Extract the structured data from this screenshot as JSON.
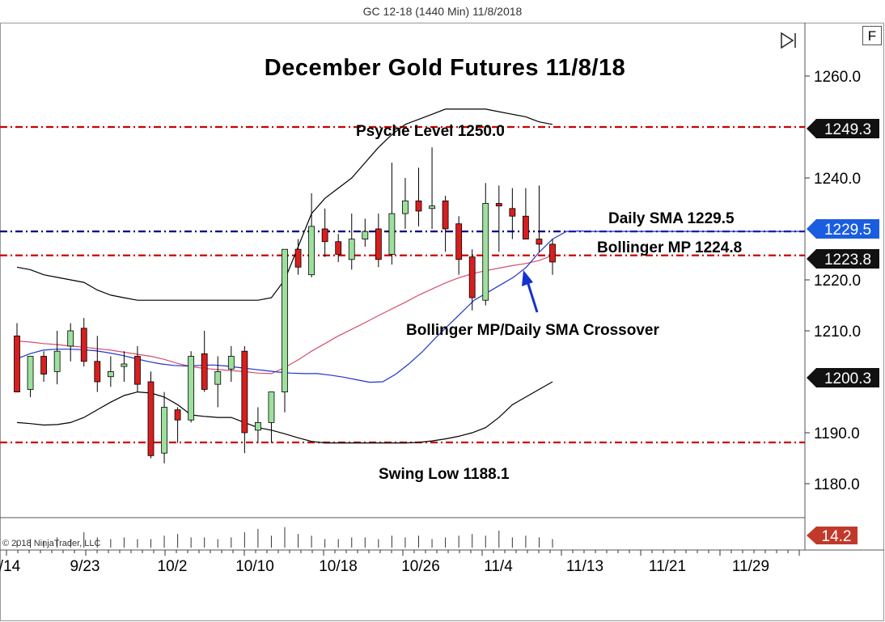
{
  "header": {
    "title": "GC 12-18 (1440 Min)  11/8/2018"
  },
  "toolbar": {
    "f_button_label": "F",
    "scroll_end_icon": "skip-to-end-icon"
  },
  "copyright": "© 2018 NinjaTrader, LLC",
  "colors": {
    "bull": "#9de09d",
    "bear": "#d81e1e",
    "level_red": "#cc0000",
    "level_blue": "#000080",
    "sma": "#2233cc",
    "bollinger_mp": "#d64e6e",
    "bands": "#000000",
    "badge_dark": "#111111",
    "badge_blue": "#1a5de0",
    "badge_red": "#c0392b",
    "arrow": "#1433cc"
  },
  "chart_data": {
    "type": "candlestick",
    "title": "December Gold Futures 11/8/18",
    "y_axis": {
      "ylim": [
        1175.0,
        1265.0
      ],
      "ticks": [
        1260.0,
        1240.0,
        1220.0,
        1210.0,
        1190.0,
        1180.0
      ]
    },
    "x_axis": {
      "tick_labels": [
        "/14",
        "9/23",
        "10/2",
        "10/10",
        "10/18",
        "10/26",
        "11/4",
        "11/13",
        "11/21",
        "11/29"
      ]
    },
    "candles": [
      {
        "o": 1209.0,
        "h": 1211.5,
        "l": 1198.0,
        "c": 1198.0
      },
      {
        "o": 1198.5,
        "h": 1205.0,
        "l": 1197.0,
        "c": 1205.0
      },
      {
        "o": 1205.0,
        "h": 1206.0,
        "l": 1200.0,
        "c": 1201.5
      },
      {
        "o": 1202.0,
        "h": 1210.0,
        "l": 1199.5,
        "c": 1206.0
      },
      {
        "o": 1207.0,
        "h": 1211.5,
        "l": 1204.0,
        "c": 1210.0
      },
      {
        "o": 1210.5,
        "h": 1212.5,
        "l": 1203.0,
        "c": 1204.0
      },
      {
        "o": 1204.0,
        "h": 1209.0,
        "l": 1198.0,
        "c": 1200.0
      },
      {
        "o": 1201.0,
        "h": 1205.0,
        "l": 1199.0,
        "c": 1202.0
      },
      {
        "o": 1203.0,
        "h": 1206.0,
        "l": 1200.0,
        "c": 1203.5
      },
      {
        "o": 1205.0,
        "h": 1207.0,
        "l": 1198.0,
        "c": 1199.5
      },
      {
        "o": 1200.0,
        "h": 1202.0,
        "l": 1185.0,
        "c": 1185.5
      },
      {
        "o": 1186.0,
        "h": 1198.0,
        "l": 1184.0,
        "c": 1195.0
      },
      {
        "o": 1194.5,
        "h": 1195.0,
        "l": 1188.0,
        "c": 1192.5
      },
      {
        "o": 1192.5,
        "h": 1206.0,
        "l": 1192.0,
        "c": 1205.0
      },
      {
        "o": 1205.5,
        "h": 1210.0,
        "l": 1198.0,
        "c": 1198.5
      },
      {
        "o": 1199.5,
        "h": 1205.0,
        "l": 1195.0,
        "c": 1202.0
      },
      {
        "o": 1202.5,
        "h": 1207.0,
        "l": 1200.0,
        "c": 1205.0
      },
      {
        "o": 1206.0,
        "h": 1207.0,
        "l": 1186.0,
        "c": 1190.0
      },
      {
        "o": 1190.5,
        "h": 1195.0,
        "l": 1188.0,
        "c": 1192.0
      },
      {
        "o": 1192.0,
        "h": 1198.0,
        "l": 1188.0,
        "c": 1198.0
      },
      {
        "o": 1198.0,
        "h": 1226.0,
        "l": 1194.0,
        "c": 1226.0
      },
      {
        "o": 1226.0,
        "h": 1228.0,
        "l": 1221.0,
        "c": 1222.5
      },
      {
        "o": 1221.0,
        "h": 1237.0,
        "l": 1220.5,
        "c": 1230.5
      },
      {
        "o": 1230.0,
        "h": 1234.0,
        "l": 1224.5,
        "c": 1227.5
      },
      {
        "o": 1227.5,
        "h": 1229.0,
        "l": 1223.5,
        "c": 1225.0
      },
      {
        "o": 1224.0,
        "h": 1233.0,
        "l": 1222.0,
        "c": 1228.0
      },
      {
        "o": 1228.0,
        "h": 1232.0,
        "l": 1226.5,
        "c": 1229.5
      },
      {
        "o": 1230.0,
        "h": 1233.0,
        "l": 1222.5,
        "c": 1224.0
      },
      {
        "o": 1225.0,
        "h": 1243.0,
        "l": 1223.0,
        "c": 1233.0
      },
      {
        "o": 1233.0,
        "h": 1240.0,
        "l": 1230.0,
        "c": 1235.5
      },
      {
        "o": 1235.5,
        "h": 1242.0,
        "l": 1230.5,
        "c": 1233.5
      },
      {
        "o": 1234.0,
        "h": 1246.0,
        "l": 1230.0,
        "c": 1234.5
      },
      {
        "o": 1235.5,
        "h": 1236.5,
        "l": 1225.5,
        "c": 1230.0
      },
      {
        "o": 1231.0,
        "h": 1232.5,
        "l": 1221.0,
        "c": 1224.0
      },
      {
        "o": 1224.5,
        "h": 1226.0,
        "l": 1214.0,
        "c": 1216.5
      },
      {
        "o": 1216.0,
        "h": 1239.0,
        "l": 1215.0,
        "c": 1235.0
      },
      {
        "o": 1235.0,
        "h": 1238.5,
        "l": 1225.5,
        "c": 1234.5
      },
      {
        "o": 1234.0,
        "h": 1238.0,
        "l": 1228.0,
        "c": 1232.5
      },
      {
        "o": 1232.5,
        "h": 1238.0,
        "l": 1228.0,
        "c": 1228.0
      },
      {
        "o": 1228.0,
        "h": 1238.5,
        "l": 1225.5,
        "c": 1227.0
      },
      {
        "o": 1227.0,
        "h": 1228.0,
        "l": 1221.0,
        "c": 1223.5
      }
    ],
    "bollinger_upper": [
      1222.5,
      1222.0,
      1221.0,
      1220.5,
      1220.0,
      1219.5,
      1218.0,
      1217.0,
      1216.5,
      1216.0,
      1216.0,
      1216.0,
      1216.0,
      1216.0,
      1216.0,
      1216.0,
      1216.0,
      1216.0,
      1216.0,
      1216.5,
      1220.0,
      1226.5,
      1233.0,
      1236.0,
      1238.0,
      1240.0,
      1243.0,
      1246.0,
      1248.5,
      1250.5,
      1251.5,
      1252.5,
      1253.5,
      1253.5,
      1253.5,
      1253.5,
      1253.0,
      1252.5,
      1252.0,
      1251.0,
      1250.5
    ],
    "bollinger_mid": [
      1208.0,
      1207.8,
      1207.5,
      1207.3,
      1207.0,
      1206.8,
      1206.5,
      1206.2,
      1205.8,
      1205.4,
      1205.0,
      1204.4,
      1203.6,
      1203.0,
      1202.6,
      1202.4,
      1202.2,
      1202.0,
      1201.7,
      1201.6,
      1202.8,
      1204.3,
      1206.0,
      1207.5,
      1209.0,
      1210.3,
      1211.6,
      1213.0,
      1214.3,
      1215.6,
      1217.0,
      1218.2,
      1219.4,
      1220.4,
      1221.2,
      1221.8,
      1222.3,
      1222.8,
      1223.2,
      1223.8,
      1224.8
    ],
    "daily_sma": [
      1204.5,
      1205.5,
      1206.2,
      1206.4,
      1206.4,
      1206.3,
      1206.1,
      1205.7,
      1205.2,
      1204.6,
      1204.0,
      1203.5,
      1203.2,
      1203.1,
      1203.2,
      1203.3,
      1203.1,
      1202.8,
      1202.5,
      1202.2,
      1201.9,
      1201.7,
      1201.6,
      1201.6,
      1201.3,
      1200.9,
      1200.4,
      1199.9,
      1200.0,
      1201.5,
      1203.5,
      1205.8,
      1208.5,
      1211.0,
      1213.5,
      1216.0,
      1217.5,
      1219.0,
      1220.5,
      1222.5,
      1225.5,
      1228.0,
      1229.5,
      1229.6,
      1229.5,
      1229.5,
      1229.5,
      1229.5,
      1229.5,
      1229.5,
      1229.5,
      1229.5,
      1229.5,
      1229.5,
      1229.5,
      1229.5,
      1229.5,
      1229.5,
      1229.5,
      1229.5
    ],
    "bollinger_lower": [
      1192.0,
      1191.8,
      1191.5,
      1191.6,
      1192.0,
      1193.0,
      1194.5,
      1196.0,
      1197.3,
      1198.0,
      1197.8,
      1197.0,
      1195.5,
      1193.5,
      1193.2,
      1193.0,
      1193.0,
      1192.0,
      1191.0,
      1190.5,
      1189.8,
      1189.0,
      1188.3,
      1188.0,
      1188.0,
      1188.0,
      1188.0,
      1188.0,
      1188.0,
      1188.0,
      1188.1,
      1188.4,
      1188.8,
      1189.3,
      1190.0,
      1191.0,
      1193.0,
      1195.5,
      1197.0,
      1198.5,
      1200.0
    ],
    "levels": [
      {
        "value": 1250.0,
        "label": "Psyche Level 1250.0",
        "color": "red"
      },
      {
        "value": 1229.5,
        "label": "Daily SMA 1229.5",
        "color": "blue"
      },
      {
        "value": 1224.8,
        "label": "Bollinger MP 1224.8",
        "color": "red"
      },
      {
        "value": 1188.1,
        "label": "Swing Low 1188.1",
        "color": "red"
      }
    ],
    "annotations": [
      "Bollinger MP/Daily SMA Crossover"
    ],
    "price_badges": [
      {
        "value": "1249.3",
        "style": "dark"
      },
      {
        "value": "1229.5",
        "style": "blue"
      },
      {
        "value": "1223.8",
        "style": "dark"
      },
      {
        "value": "1200.3",
        "style": "dark"
      }
    ],
    "volume": {
      "badge": "14.2",
      "bars": [
        4,
        5,
        4,
        6,
        5,
        9,
        6,
        5,
        6,
        5,
        5,
        7,
        8,
        6,
        6,
        5,
        6,
        9,
        11,
        7,
        12,
        8,
        7,
        5,
        5,
        6,
        6,
        5,
        7,
        6,
        7,
        5,
        6,
        7,
        8,
        7,
        10,
        6,
        7,
        6,
        5
      ]
    }
  }
}
